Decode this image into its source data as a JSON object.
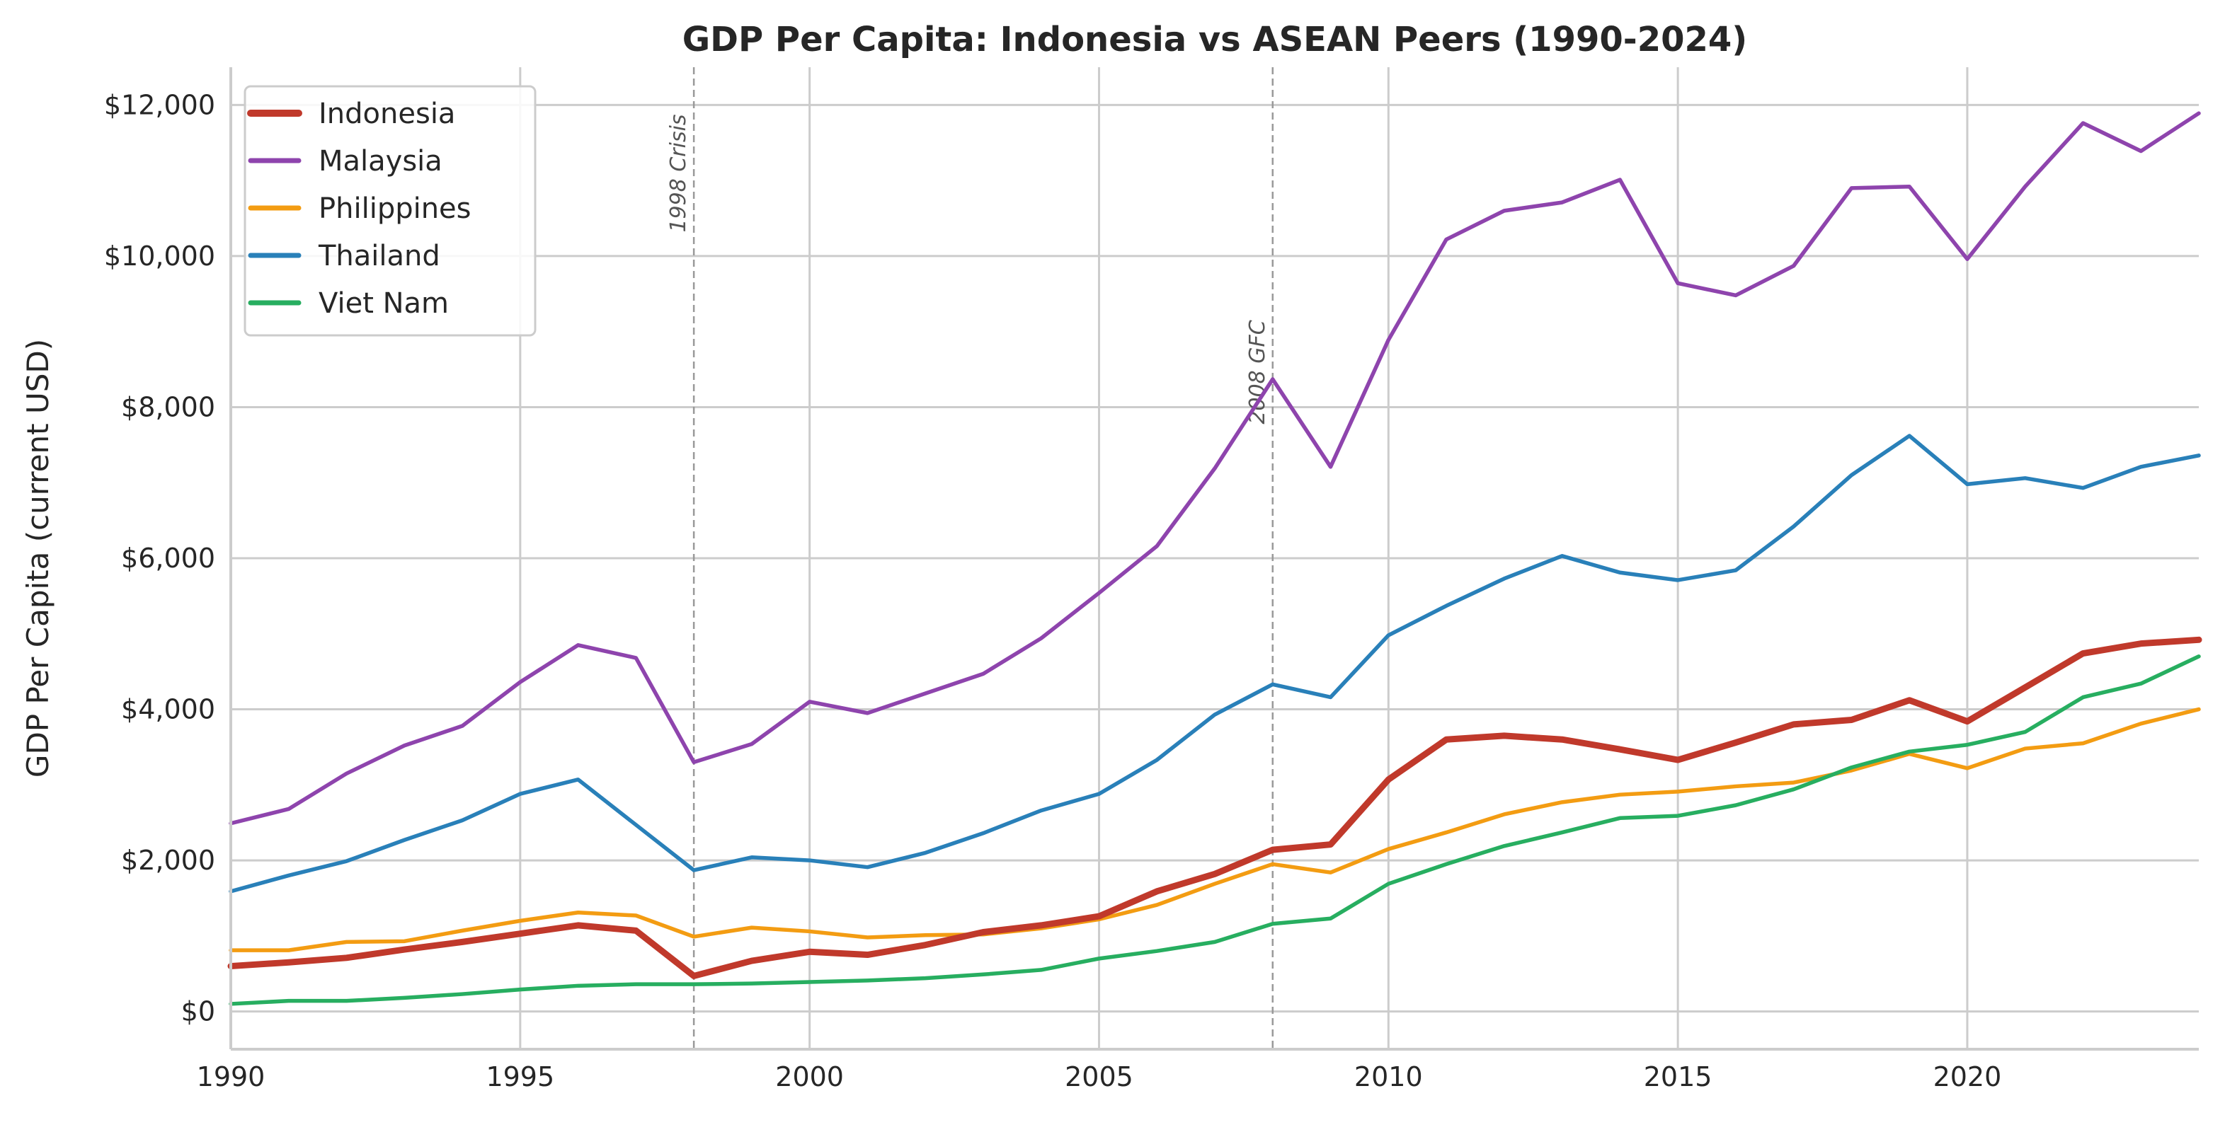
{
  "chart_data": {
    "type": "line",
    "title": "GDP Per Capita: Indonesia vs ASEAN Peers (1990-2024)",
    "xlabel": "",
    "ylabel": "GDP Per Capita (current USD)",
    "xlim": [
      1990,
      2024
    ],
    "ylim": [
      -500,
      12500
    ],
    "xticks": [
      1990,
      1995,
      2000,
      2005,
      2010,
      2015,
      2020
    ],
    "xtick_labels": [
      "1990",
      "1995",
      "2000",
      "2005",
      "2010",
      "2015",
      "2020"
    ],
    "yticks": [
      0,
      2000,
      4000,
      6000,
      8000,
      10000,
      12000
    ],
    "ytick_labels": [
      "$0",
      "$2,000",
      "$4,000",
      "$6,000",
      "$8,000",
      "$10,000",
      "$12,000"
    ],
    "grid": true,
    "legend_position": "top-left",
    "x": [
      1990,
      1991,
      1992,
      1993,
      1994,
      1995,
      1996,
      1997,
      1998,
      1999,
      2000,
      2001,
      2002,
      2003,
      2004,
      2005,
      2006,
      2007,
      2008,
      2009,
      2010,
      2011,
      2012,
      2013,
      2014,
      2015,
      2016,
      2017,
      2018,
      2019,
      2020,
      2021,
      2022,
      2023,
      2024
    ],
    "series": [
      {
        "name": "Indonesia",
        "color": "#c0392b",
        "emphasis": true,
        "values": [
          600,
          650,
          710,
          820,
          920,
          1030,
          1140,
          1070,
          470,
          670,
          790,
          750,
          880,
          1050,
          1140,
          1260,
          1590,
          1820,
          2140,
          2210,
          3070,
          3600,
          3650,
          3600,
          3470,
          3330,
          3560,
          3800,
          3860,
          4120,
          3840,
          4290,
          4740,
          4870,
          4920
        ]
      },
      {
        "name": "Malaysia",
        "color": "#8e44ad",
        "values": [
          2490,
          2680,
          3150,
          3520,
          3780,
          4360,
          4850,
          4680,
          3300,
          3540,
          4100,
          3950,
          4210,
          4470,
          4940,
          5540,
          6160,
          7190,
          8370,
          7210,
          8890,
          10220,
          10600,
          10710,
          11010,
          9640,
          9480,
          9870,
          10900,
          10920,
          9960,
          10920,
          11760,
          11390,
          11890
        ]
      },
      {
        "name": "Philippines",
        "color": "#f39c12",
        "values": [
          810,
          810,
          920,
          930,
          1070,
          1200,
          1310,
          1270,
          990,
          1110,
          1060,
          980,
          1010,
          1020,
          1100,
          1220,
          1410,
          1690,
          1950,
          1840,
          2150,
          2370,
          2610,
          2770,
          2870,
          2910,
          2980,
          3030,
          3190,
          3410,
          3220,
          3480,
          3550,
          3810,
          4000
        ]
      },
      {
        "name": "Thailand",
        "color": "#2980b9",
        "values": [
          1590,
          1800,
          1990,
          2270,
          2530,
          2880,
          3070,
          2470,
          1870,
          2040,
          2000,
          1910,
          2100,
          2360,
          2660,
          2880,
          3330,
          3930,
          4330,
          4160,
          4980,
          5370,
          5730,
          6030,
          5810,
          5710,
          5840,
          6420,
          7100,
          7620,
          6980,
          7060,
          6930,
          7210,
          7360
        ]
      },
      {
        "name": "Viet Nam",
        "color": "#27ae60",
        "values": [
          100,
          140,
          140,
          180,
          230,
          290,
          340,
          360,
          360,
          370,
          390,
          410,
          440,
          490,
          550,
          700,
          800,
          920,
          1160,
          1230,
          1690,
          1950,
          2190,
          2370,
          2560,
          2590,
          2730,
          2940,
          3230,
          3440,
          3530,
          3700,
          4160,
          4340,
          4700
        ]
      }
    ],
    "annotations": [
      {
        "x": 1998,
        "label": "1998 Crisis"
      },
      {
        "x": 2008,
        "label": "2008 GFC"
      }
    ]
  }
}
